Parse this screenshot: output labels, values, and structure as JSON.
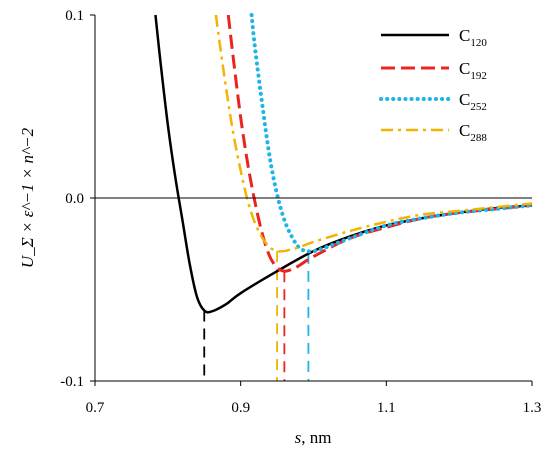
{
  "chart_data": {
    "type": "line",
    "xlabel_var": "s",
    "xlabel_unit": ", nm",
    "ylabel": "U_Σ × ε^−1 × n^−2",
    "xlim": [
      0.7,
      1.3
    ],
    "ylim": [
      -0.1,
      0.1
    ],
    "x_ticks": [
      "0.7",
      "0.9",
      "1.1",
      "1.3"
    ],
    "y_ticks": [
      "0.1",
      "0.0",
      "-0.1"
    ],
    "grid": false,
    "legend_position": "top-right",
    "series": [
      {
        "name": "C",
        "subscript": "120",
        "color": "#000000",
        "style": "solid",
        "minimum": {
          "x": 0.85,
          "y": -0.0615
        },
        "x": [
          0.783,
          0.79,
          0.8,
          0.81,
          0.82,
          0.83,
          0.84,
          0.85,
          0.86,
          0.88,
          0.9,
          0.95,
          1.0,
          1.05,
          1.1,
          1.15,
          1.2,
          1.25,
          1.3
        ],
        "y": [
          0.1,
          0.074,
          0.04,
          0.012,
          -0.012,
          -0.036,
          -0.054,
          -0.0615,
          -0.062,
          -0.058,
          -0.052,
          -0.04,
          -0.029,
          -0.021,
          -0.015,
          -0.011,
          -0.008,
          -0.0055,
          -0.004
        ]
      },
      {
        "name": "C",
        "subscript": "192",
        "color": "#e8251f",
        "style": "dashed",
        "minimum": {
          "x": 0.96,
          "y": -0.04
        },
        "x": [
          0.883,
          0.89,
          0.9,
          0.91,
          0.92,
          0.93,
          0.94,
          0.95,
          0.96,
          0.97,
          0.98,
          1.0,
          1.05,
          1.1,
          1.15,
          1.2,
          1.25,
          1.3
        ],
        "y": [
          0.1,
          0.076,
          0.044,
          0.018,
          -0.003,
          -0.02,
          -0.032,
          -0.038,
          -0.04,
          -0.039,
          -0.037,
          -0.032,
          -0.022,
          -0.016,
          -0.011,
          -0.008,
          -0.006,
          -0.004
        ]
      },
      {
        "name": "C",
        "subscript": "252",
        "color": "#1eb4e8",
        "style": "dotted",
        "minimum": {
          "x": 0.993,
          "y": -0.03
        },
        "x": [
          0.915,
          0.92,
          0.93,
          0.94,
          0.95,
          0.96,
          0.97,
          0.98,
          0.99,
          1.0,
          1.01,
          1.05,
          1.1,
          1.15,
          1.2,
          1.25,
          1.3
        ],
        "y": [
          0.1,
          0.081,
          0.05,
          0.022,
          0.002,
          -0.012,
          -0.021,
          -0.027,
          -0.029,
          -0.029,
          -0.028,
          -0.022,
          -0.015,
          -0.011,
          -0.008,
          -0.006,
          -0.004
        ]
      },
      {
        "name": "C",
        "subscript": "288",
        "color": "#f2b400",
        "style": "dashdot",
        "minimum": {
          "x": 0.95,
          "y": -0.029
        },
        "x": [
          0.866,
          0.87,
          0.88,
          0.89,
          0.9,
          0.91,
          0.92,
          0.93,
          0.94,
          0.95,
          0.96,
          0.97,
          0.98,
          1.0,
          1.05,
          1.1,
          1.15,
          1.2,
          1.25,
          1.3
        ],
        "y": [
          0.1,
          0.088,
          0.06,
          0.035,
          0.015,
          -0.002,
          -0.014,
          -0.022,
          -0.027,
          -0.029,
          -0.029,
          -0.028,
          -0.027,
          -0.024,
          -0.018,
          -0.013,
          -0.009,
          -0.007,
          -0.005,
          -0.003
        ]
      }
    ]
  }
}
